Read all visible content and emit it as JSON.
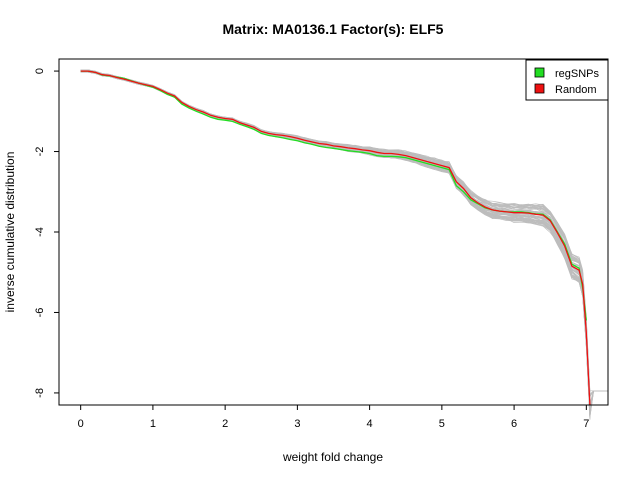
{
  "chart_data": {
    "type": "line",
    "title": "Matrix: MA0136.1 Factor(s): ELF5",
    "xlabel": "weight fold change",
    "ylabel": "inverse cumulative distribution",
    "xlim": [
      -0.3,
      7.3
    ],
    "ylim": [
      -8.3,
      0.3
    ],
    "x_ticks": [
      0,
      1,
      2,
      3,
      4,
      5,
      6,
      7
    ],
    "y_ticks": [
      0,
      -2,
      -4,
      -6,
      -8
    ],
    "grid": false,
    "legend_position": "top-right",
    "colors": {
      "regSNPs": "#22dd22",
      "Random": "#ee1111",
      "background_random": "#bdbdbd"
    },
    "legend": [
      {
        "name": "regSNPs",
        "color": "#22dd22"
      },
      {
        "name": "Random",
        "color": "#ee1111"
      }
    ],
    "series": [
      {
        "name": "regSNPs",
        "color": "#22dd22",
        "points": [
          [
            0,
            0
          ],
          [
            0.1,
            0
          ],
          [
            0.2,
            -0.03
          ],
          [
            0.3,
            -0.1
          ],
          [
            0.4,
            -0.12
          ],
          [
            0.5,
            -0.15
          ],
          [
            0.6,
            -0.18
          ],
          [
            0.7,
            -0.24
          ],
          [
            0.8,
            -0.3
          ],
          [
            0.9,
            -0.35
          ],
          [
            1.0,
            -0.4
          ],
          [
            1.1,
            -0.48
          ],
          [
            1.2,
            -0.58
          ],
          [
            1.3,
            -0.65
          ],
          [
            1.4,
            -0.82
          ],
          [
            1.5,
            -0.92
          ],
          [
            1.6,
            -1.0
          ],
          [
            1.7,
            -1.07
          ],
          [
            1.8,
            -1.15
          ],
          [
            1.9,
            -1.2
          ],
          [
            2.0,
            -1.22
          ],
          [
            2.1,
            -1.25
          ],
          [
            2.2,
            -1.32
          ],
          [
            2.3,
            -1.38
          ],
          [
            2.4,
            -1.45
          ],
          [
            2.5,
            -1.55
          ],
          [
            2.6,
            -1.6
          ],
          [
            2.7,
            -1.63
          ],
          [
            2.8,
            -1.66
          ],
          [
            2.9,
            -1.7
          ],
          [
            3.0,
            -1.73
          ],
          [
            3.1,
            -1.78
          ],
          [
            3.2,
            -1.82
          ],
          [
            3.3,
            -1.87
          ],
          [
            3.4,
            -1.9
          ],
          [
            3.5,
            -1.92
          ],
          [
            3.6,
            -1.95
          ],
          [
            3.7,
            -1.98
          ],
          [
            3.8,
            -2.0
          ],
          [
            3.9,
            -2.02
          ],
          [
            4.0,
            -2.05
          ],
          [
            4.1,
            -2.1
          ],
          [
            4.2,
            -2.12
          ],
          [
            4.3,
            -2.12
          ],
          [
            4.4,
            -2.13
          ],
          [
            4.5,
            -2.15
          ],
          [
            4.6,
            -2.2
          ],
          [
            4.7,
            -2.25
          ],
          [
            4.8,
            -2.3
          ],
          [
            4.9,
            -2.35
          ],
          [
            5.0,
            -2.4
          ],
          [
            5.1,
            -2.45
          ],
          [
            5.2,
            -2.85
          ],
          [
            5.3,
            -3.0
          ],
          [
            5.4,
            -3.2
          ],
          [
            5.5,
            -3.3
          ],
          [
            5.6,
            -3.4
          ],
          [
            5.7,
            -3.45
          ],
          [
            5.8,
            -3.48
          ],
          [
            5.9,
            -3.5
          ],
          [
            6.0,
            -3.5
          ],
          [
            6.1,
            -3.5
          ],
          [
            6.2,
            -3.52
          ],
          [
            6.3,
            -3.55
          ],
          [
            6.4,
            -3.56
          ],
          [
            6.5,
            -3.7
          ],
          [
            6.6,
            -4.0
          ],
          [
            6.7,
            -4.3
          ],
          [
            6.8,
            -4.8
          ],
          [
            6.9,
            -4.9
          ],
          [
            6.95,
            -5.4
          ],
          [
            7.0,
            -6.2
          ]
        ]
      },
      {
        "name": "Random",
        "color": "#ee1111",
        "points": [
          [
            0,
            0
          ],
          [
            0.1,
            0
          ],
          [
            0.2,
            -0.03
          ],
          [
            0.3,
            -0.09
          ],
          [
            0.4,
            -0.11
          ],
          [
            0.5,
            -0.16
          ],
          [
            0.6,
            -0.2
          ],
          [
            0.7,
            -0.25
          ],
          [
            0.8,
            -0.3
          ],
          [
            0.9,
            -0.34
          ],
          [
            1.0,
            -0.38
          ],
          [
            1.1,
            -0.46
          ],
          [
            1.2,
            -0.55
          ],
          [
            1.3,
            -0.62
          ],
          [
            1.4,
            -0.78
          ],
          [
            1.5,
            -0.88
          ],
          [
            1.6,
            -0.96
          ],
          [
            1.7,
            -1.02
          ],
          [
            1.8,
            -1.1
          ],
          [
            1.9,
            -1.15
          ],
          [
            2.0,
            -1.18
          ],
          [
            2.1,
            -1.2
          ],
          [
            2.2,
            -1.28
          ],
          [
            2.3,
            -1.34
          ],
          [
            2.4,
            -1.4
          ],
          [
            2.5,
            -1.5
          ],
          [
            2.6,
            -1.55
          ],
          [
            2.7,
            -1.58
          ],
          [
            2.8,
            -1.6
          ],
          [
            2.9,
            -1.63
          ],
          [
            3.0,
            -1.67
          ],
          [
            3.1,
            -1.72
          ],
          [
            3.2,
            -1.76
          ],
          [
            3.3,
            -1.8
          ],
          [
            3.4,
            -1.82
          ],
          [
            3.5,
            -1.86
          ],
          [
            3.6,
            -1.88
          ],
          [
            3.7,
            -1.91
          ],
          [
            3.8,
            -1.93
          ],
          [
            3.9,
            -1.96
          ],
          [
            4.0,
            -1.98
          ],
          [
            4.1,
            -2.02
          ],
          [
            4.2,
            -2.05
          ],
          [
            4.3,
            -2.05
          ],
          [
            4.4,
            -2.07
          ],
          [
            4.5,
            -2.1
          ],
          [
            4.6,
            -2.15
          ],
          [
            4.7,
            -2.2
          ],
          [
            4.8,
            -2.25
          ],
          [
            4.9,
            -2.3
          ],
          [
            5.0,
            -2.35
          ],
          [
            5.1,
            -2.4
          ],
          [
            5.2,
            -2.75
          ],
          [
            5.3,
            -2.92
          ],
          [
            5.4,
            -3.15
          ],
          [
            5.5,
            -3.28
          ],
          [
            5.6,
            -3.38
          ],
          [
            5.7,
            -3.45
          ],
          [
            5.8,
            -3.48
          ],
          [
            5.9,
            -3.5
          ],
          [
            6.0,
            -3.52
          ],
          [
            6.1,
            -3.52
          ],
          [
            6.2,
            -3.53
          ],
          [
            6.3,
            -3.56
          ],
          [
            6.4,
            -3.58
          ],
          [
            6.5,
            -3.72
          ],
          [
            6.6,
            -4.02
          ],
          [
            6.7,
            -4.35
          ],
          [
            6.8,
            -4.85
          ],
          [
            6.9,
            -4.95
          ],
          [
            6.95,
            -5.3
          ],
          [
            7.0,
            -6.5
          ],
          [
            7.05,
            -8.3
          ]
        ]
      }
    ],
    "background_band": {
      "name": "random-samples",
      "count": 60,
      "spread_start": 0.03,
      "spread_end": 0.35,
      "tail_x": [
        7.1,
        7.3
      ],
      "tail_y": -7.95
    }
  }
}
